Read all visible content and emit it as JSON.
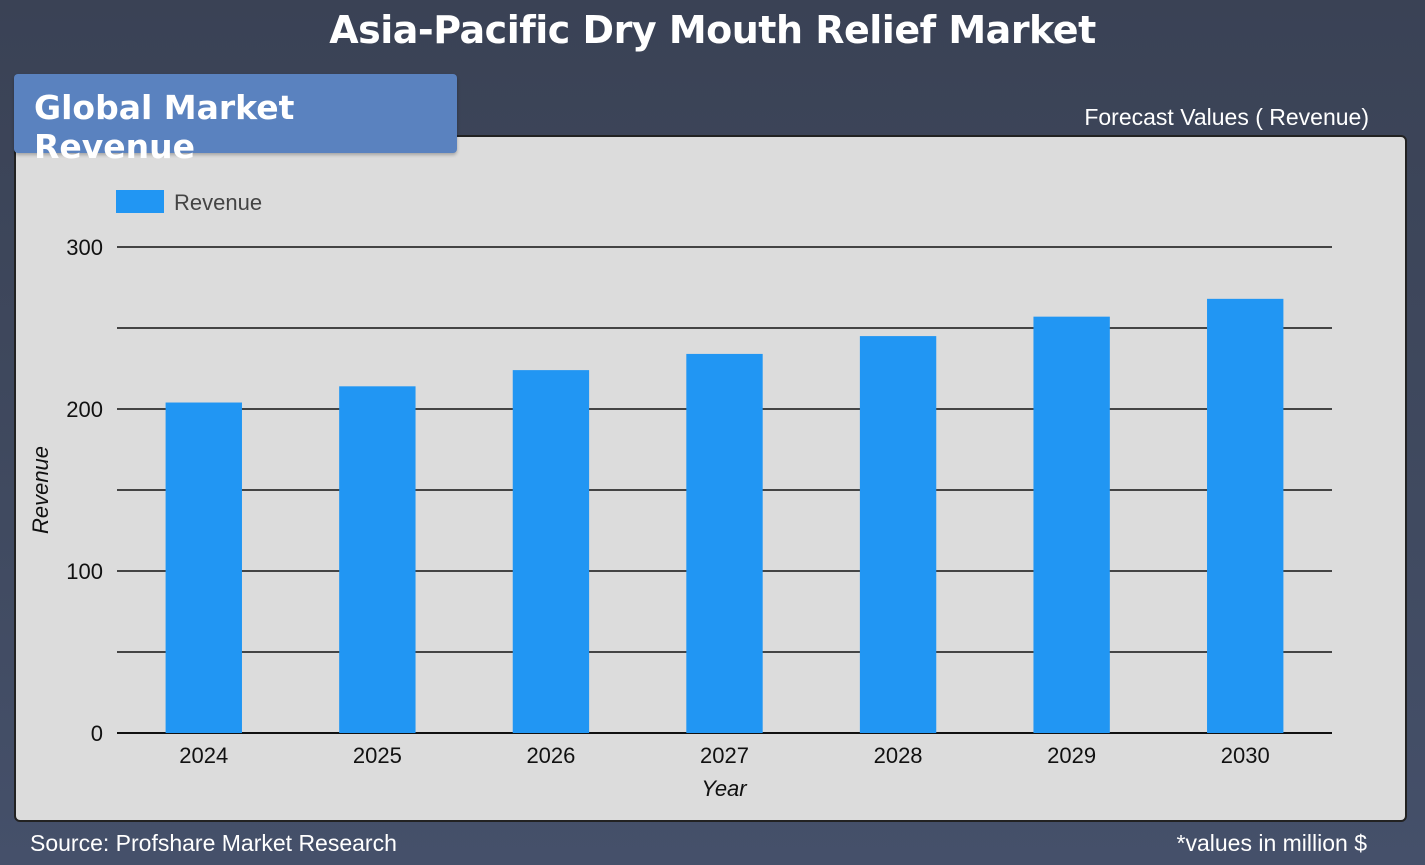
{
  "title": "Asia-Pacific Dry Mouth Relief Market",
  "tab_label": "Global Market Revenue",
  "forecast_label": "Forecast Values ( Revenue)",
  "footer": {
    "source": "Source: Profshare Market Research",
    "unit_note": "*values in million $"
  },
  "chart_data": {
    "type": "bar",
    "categories": [
      "2024",
      "2025",
      "2026",
      "2027",
      "2028",
      "2029",
      "2030"
    ],
    "series": [
      {
        "name": "Revenue",
        "values": [
          204,
          214,
          224,
          234,
          245,
          257,
          268
        ],
        "color": "#2196f3"
      }
    ],
    "xlabel": "Year",
    "ylabel": "Revenue",
    "ylim": [
      0,
      300
    ],
    "yticks": [
      0,
      100,
      200,
      300
    ],
    "minor_gridlines": [
      50,
      150,
      250
    ],
    "grid": true,
    "legend_position": "top-left"
  }
}
